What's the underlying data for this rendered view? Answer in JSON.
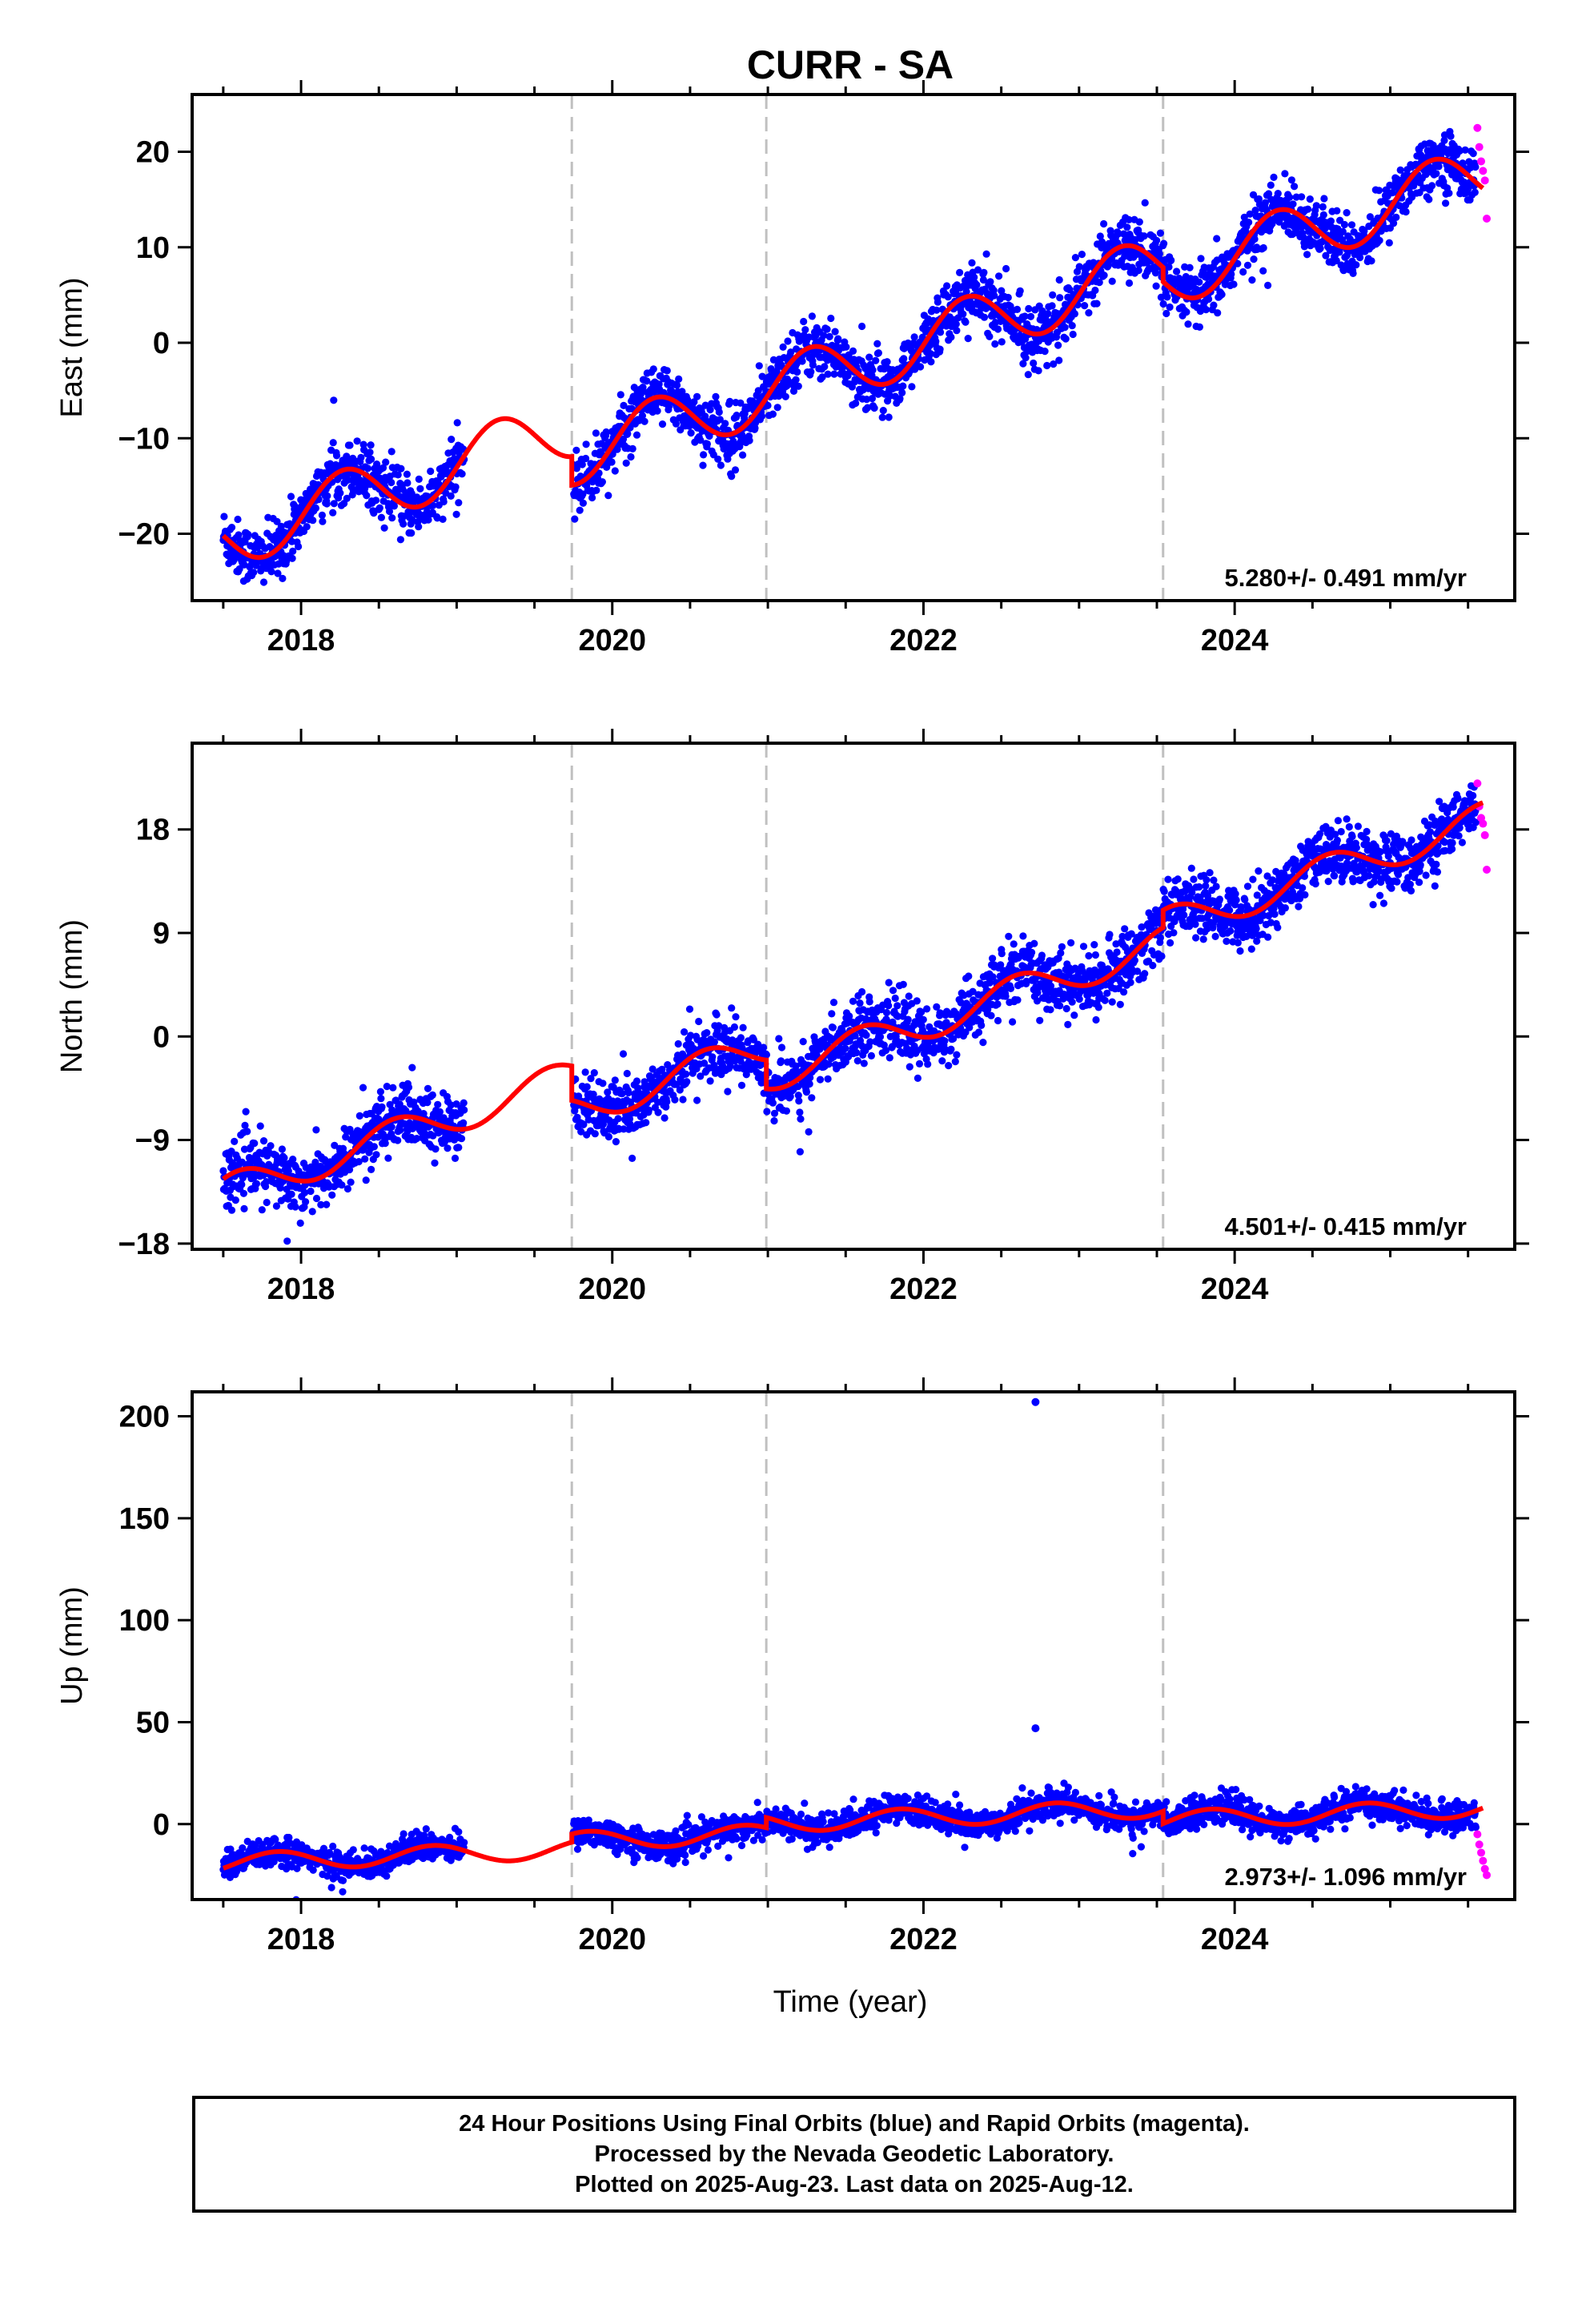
{
  "chart_data": {
    "title": "CURR - SA",
    "type": "scatter",
    "xlabel": "Time (year)",
    "xlim": [
      2017.3,
      2025.8
    ],
    "x_ticks": [
      2018,
      2020,
      2022,
      2024
    ],
    "x_tick_labels": [
      "2018",
      "2020",
      "2022",
      "2024"
    ],
    "offsets_x": [
      2019.74,
      2020.99,
      2023.54
    ],
    "colors": {
      "final": "#0000ff",
      "rapid": "#ff00ff",
      "model": "#ff0000",
      "offset_line": "#c0c0c0"
    },
    "panels": [
      {
        "ylabel": "East (mm)",
        "ylim": [
          -27,
          26
        ],
        "y_ticks": [
          -20,
          -10,
          0,
          10,
          20
        ],
        "y_tick_labels": [
          "−20",
          "−10",
          "0",
          "10",
          "20"
        ],
        "velocity": "5.280+/- 0.491 mm/yr",
        "trend": 5.28,
        "intercept": -20.6,
        "t0": 2017.5,
        "amp": 3.2,
        "phase": 0.02,
        "steps": [
          {
            "at": 2019.74,
            "d": -3.0
          },
          {
            "at": 2020.99,
            "d": 0.0
          },
          {
            "at": 2023.54,
            "d": -1.5
          }
        ],
        "scatter": 1.5,
        "segments": [
          [
            2017.5,
            2019.05
          ],
          [
            2019.75,
            2025.55
          ]
        ],
        "rapid": {
          "start": 2025.56,
          "end": 2025.62,
          "values": [
            22.5,
            20.5,
            19.0,
            18.0,
            17.0,
            13.0
          ]
        }
      },
      {
        "ylabel": "North (mm)",
        "ylim": [
          -18.5,
          25.5
        ],
        "y_ticks": [
          -18,
          -9,
          0,
          9,
          18
        ],
        "y_tick_labels": [
          "−18",
          "−9",
          "0",
          "9",
          "18"
        ],
        "velocity": "4.501+/- 0.415 mm/yr",
        "trend": 4.5,
        "intercept": -13.6,
        "t0": 2017.5,
        "amp": 1.5,
        "phase": 0.35,
        "steps": [
          {
            "at": 2019.74,
            "d": -3.0
          },
          {
            "at": 2020.99,
            "d": -2.5
          },
          {
            "at": 2023.54,
            "d": 1.5
          }
        ],
        "scatter": 1.3,
        "segments": [
          [
            2017.5,
            2019.05
          ],
          [
            2019.75,
            2025.55
          ]
        ],
        "rapid": {
          "start": 2025.56,
          "end": 2025.62,
          "values": [
            22.0,
            20.0,
            19.0,
            18.5,
            17.5,
            14.5
          ]
        }
      },
      {
        "ylabel": "Up (mm)",
        "ylim": [
          -37,
          212
        ],
        "y_ticks": [
          0,
          50,
          100,
          150,
          200
        ],
        "y_tick_labels": [
          "0",
          "50",
          "100",
          "150",
          "200"
        ],
        "velocity": "2.973+/- 1.096 mm/yr",
        "trend": 2.97,
        "intercept": -19.0,
        "t0": 2017.5,
        "amp": 4.5,
        "phase": 0.6,
        "steps": [
          {
            "at": 2019.74,
            "d": 4.0
          },
          {
            "at": 2020.99,
            "d": 5.0
          },
          {
            "at": 2023.54,
            "d": -6.0
          }
        ],
        "scatter": 3.5,
        "segments": [
          [
            2017.5,
            2019.05
          ],
          [
            2019.75,
            2025.55
          ]
        ],
        "outliers": [
          [
            2022.72,
            207
          ],
          [
            2022.72,
            47
          ]
        ],
        "rapid": {
          "start": 2025.56,
          "end": 2025.62,
          "values": [
            -5.0,
            -10.0,
            -14.0,
            -18.0,
            -22.0,
            -25.0
          ]
        }
      }
    ]
  },
  "footer": {
    "line1": "24 Hour Positions Using Final Orbits (blue) and Rapid Orbits (magenta).",
    "line2": "Processed by the Nevada Geodetic Laboratory.",
    "line3": "Plotted on 2025-Aug-23. Last data on 2025-Aug-12."
  }
}
